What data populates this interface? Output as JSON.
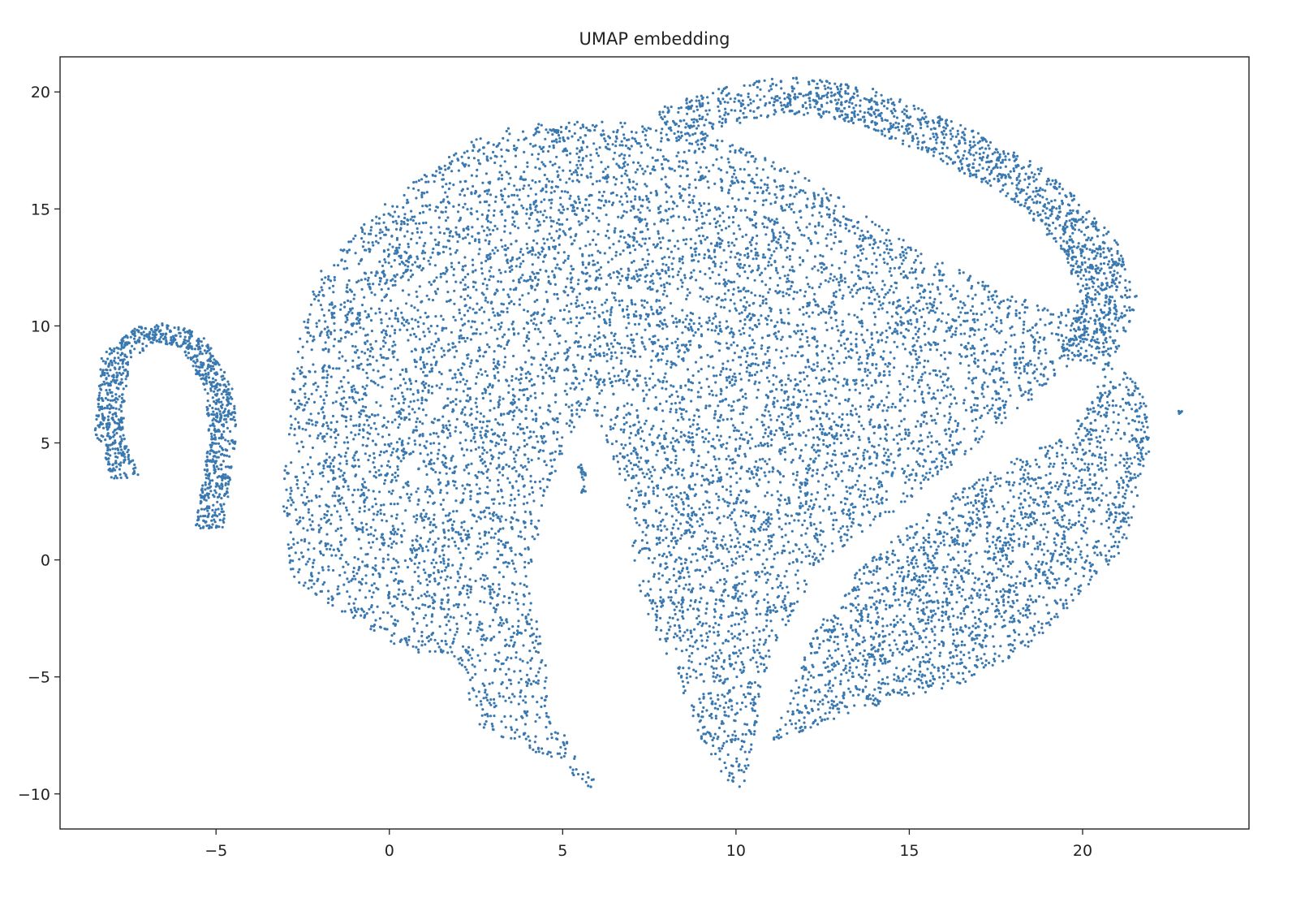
{
  "chart_data": {
    "type": "scatter",
    "title": "UMAP embedding",
    "xlabel": "",
    "ylabel": "",
    "xlim": [
      -9.5,
      24.8
    ],
    "ylim": [
      -11.5,
      21.5
    ],
    "xticks": [
      -5,
      0,
      5,
      10,
      15,
      20
    ],
    "yticks": [
      -10,
      -5,
      0,
      5,
      10,
      15,
      20
    ],
    "xtick_labels": [
      "−5",
      "0",
      "5",
      "10",
      "15",
      "20"
    ],
    "ytick_labels": [
      "−10",
      "−5",
      "0",
      "5",
      "10",
      "15",
      "20"
    ],
    "grid": false,
    "legend": "none",
    "series": [
      {
        "color": "#3a78b0",
        "marker_size": 1,
        "clusters": [
          {
            "id": "small-arc",
            "path": [
              [
                -7.6,
                3.5
              ],
              [
                -8.1,
                5.5
              ],
              [
                -7.9,
                8.6
              ],
              [
                -6.9,
                9.8
              ],
              [
                -5.7,
                9.4
              ],
              [
                -4.9,
                7.3
              ],
              [
                -4.8,
                5.2
              ],
              [
                -5.2,
                1.3
              ]
            ],
            "width": 0.8
          },
          {
            "id": "main-body",
            "outline": [
              [
                -3.1,
                2.4
              ],
              [
                -2.8,
                8.0
              ],
              [
                -2.2,
                12.0
              ],
              [
                0.0,
                15.5
              ],
              [
                3.0,
                18.5
              ],
              [
                6.0,
                18.8
              ],
              [
                9.0,
                18.3
              ],
              [
                12.0,
                16.5
              ],
              [
                15.0,
                13.5
              ],
              [
                17.0,
                12.0
              ],
              [
                19.0,
                10.8
              ],
              [
                20.7,
                11.0
              ],
              [
                19.5,
                8.0
              ],
              [
                17.0,
                5.0
              ],
              [
                14.5,
                2.0
              ],
              [
                12.5,
                0.0
              ],
              [
                11.0,
                -4.0
              ],
              [
                10.2,
                -10.0
              ],
              [
                9.3,
                -8.8
              ],
              [
                8.3,
                -5.0
              ],
              [
                7.2,
                -1.5
              ],
              [
                6.8,
                3.0
              ],
              [
                5.8,
                6.8
              ],
              [
                4.6,
                3.2
              ],
              [
                4.0,
                -1.0
              ],
              [
                4.5,
                -4.0
              ],
              [
                4.6,
                -6.8
              ],
              [
                5.5,
                -8.2
              ],
              [
                6.0,
                -9.3
              ],
              [
                5.8,
                -9.9
              ],
              [
                4.5,
                -8.5
              ],
              [
                2.5,
                -7.0
              ],
              [
                2.0,
                -4.3
              ],
              [
                0.3,
                -3.8
              ],
              [
                -0.7,
                -2.8
              ],
              [
                -2.8,
                -0.9
              ],
              [
                -3.1,
                2.4
              ]
            ]
          },
          {
            "id": "upper-right-shell",
            "path": [
              [
                8.0,
                18.5
              ],
              [
                9.5,
                19.3
              ],
              [
                11.5,
                19.9
              ],
              [
                13.5,
                19.5
              ],
              [
                16.0,
                18.0
              ],
              [
                18.5,
                16.0
              ],
              [
                20.2,
                13.5
              ],
              [
                20.8,
                11.0
              ],
              [
                20.0,
                8.5
              ]
            ],
            "width": 1.6
          },
          {
            "id": "lower-right-fan",
            "outline": [
              [
                11.0,
                -7.8
              ],
              [
                12.5,
                -7.0
              ],
              [
                14.5,
                -6.0
              ],
              [
                16.5,
                -5.3
              ],
              [
                18.5,
                -3.7
              ],
              [
                19.8,
                -1.7
              ],
              [
                21.2,
                0.5
              ],
              [
                21.5,
                2.2
              ],
              [
                22.0,
                5.0
              ],
              [
                21.8,
                7.0
              ],
              [
                21.2,
                8.2
              ],
              [
                20.6,
                8.2
              ],
              [
                20.3,
                6.8
              ],
              [
                19.5,
                5.3
              ],
              [
                18.0,
                4.3
              ],
              [
                16.5,
                3.0
              ],
              [
                15.0,
                1.5
              ],
              [
                13.5,
                -0.5
              ],
              [
                12.3,
                -3.0
              ],
              [
                11.0,
                -7.8
              ]
            ]
          }
        ],
        "outliers": [
          [
            22.8,
            6.3
          ],
          [
            5.6,
            3.6
          ],
          [
            5.6,
            3.0
          ],
          [
            5.5,
            3.9
          ]
        ]
      }
    ]
  }
}
